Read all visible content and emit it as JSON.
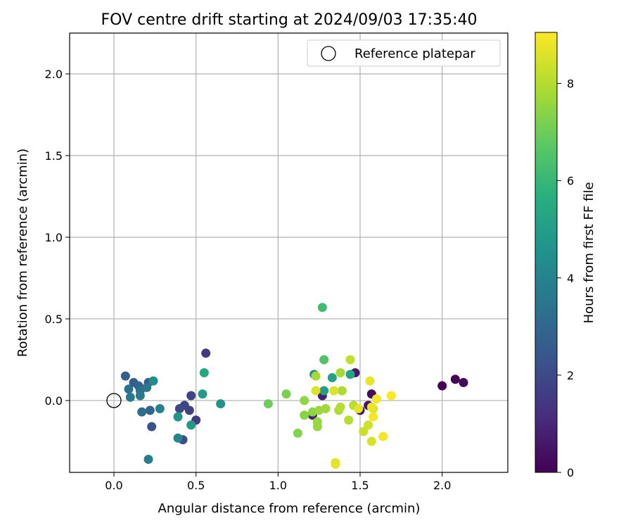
{
  "chart_data": {
    "type": "scatter",
    "title": "FOV centre drift starting at 2024/09/03 17:35:40",
    "xlabel": "Angular distance from reference (arcmin)",
    "ylabel": "Rotation from reference (arcmin)",
    "xlim": [
      -0.27,
      2.4
    ],
    "ylim": [
      -0.44,
      2.25
    ],
    "x_ticks": [
      0.0,
      0.5,
      1.0,
      1.5,
      2.0
    ],
    "x_tick_labels": [
      "0.0",
      "0.5",
      "1.0",
      "1.5",
      "2.0"
    ],
    "y_ticks": [
      0.0,
      0.5,
      1.0,
      1.5,
      2.0
    ],
    "y_tick_labels": [
      "0.0",
      "0.5",
      "1.0",
      "1.5",
      "2.0"
    ],
    "grid": true,
    "legend": {
      "placement": "top-right",
      "entries": [
        {
          "label": "Reference platepar",
          "marker": "open-circle",
          "color": "#000000"
        }
      ]
    },
    "reference_point": {
      "x": 0.0,
      "y": 0.0
    },
    "colorbar": {
      "label": "Hours from first FF file",
      "colormap": "viridis",
      "range": [
        0,
        9.05
      ],
      "ticks": [
        0,
        2,
        4,
        6,
        8
      ],
      "tick_labels": [
        "0",
        "2",
        "4",
        "6",
        "8"
      ]
    },
    "points": [
      {
        "x": 2.0,
        "y": 0.09,
        "hours": 0.05
      },
      {
        "x": 2.08,
        "y": 0.13,
        "hours": 0.1
      },
      {
        "x": 2.13,
        "y": 0.11,
        "hours": 0.15
      },
      {
        "x": 1.57,
        "y": 0.04,
        "hours": 0.3
      },
      {
        "x": 1.55,
        "y": -0.03,
        "hours": 0.4
      },
      {
        "x": 1.5,
        "y": -0.06,
        "hours": 0.5
      },
      {
        "x": 1.47,
        "y": 0.17,
        "hours": 0.6
      },
      {
        "x": 1.27,
        "y": 0.03,
        "hours": 0.8
      },
      {
        "x": 1.21,
        "y": -0.09,
        "hours": 0.9
      },
      {
        "x": 0.56,
        "y": 0.29,
        "hours": 1.5
      },
      {
        "x": 0.5,
        "y": -0.12,
        "hours": 1.6
      },
      {
        "x": 0.46,
        "y": -0.06,
        "hours": 1.7
      },
      {
        "x": 0.47,
        "y": 0.03,
        "hours": 1.8
      },
      {
        "x": 0.43,
        "y": -0.03,
        "hours": 1.9
      },
      {
        "x": 0.4,
        "y": -0.05,
        "hours": 2.0
      },
      {
        "x": 0.42,
        "y": -0.24,
        "hours": 2.1
      },
      {
        "x": 0.23,
        "y": -0.16,
        "hours": 2.3
      },
      {
        "x": 0.21,
        "y": 0.11,
        "hours": 2.6
      },
      {
        "x": 0.12,
        "y": 0.11,
        "hours": 2.7
      },
      {
        "x": 0.07,
        "y": 0.15,
        "hours": 2.8
      },
      {
        "x": 0.15,
        "y": 0.09,
        "hours": 2.9
      },
      {
        "x": 0.22,
        "y": -0.06,
        "hours": 3.0
      },
      {
        "x": 0.17,
        "y": -0.07,
        "hours": 3.2
      },
      {
        "x": 0.09,
        "y": 0.07,
        "hours": 3.3
      },
      {
        "x": 0.16,
        "y": 0.06,
        "hours": 3.4
      },
      {
        "x": 0.2,
        "y": 0.08,
        "hours": 3.5
      },
      {
        "x": 0.1,
        "y": 0.02,
        "hours": 3.6
      },
      {
        "x": 0.16,
        "y": 0.03,
        "hours": 3.7
      },
      {
        "x": 0.21,
        "y": -0.36,
        "hours": 3.8
      },
      {
        "x": 0.28,
        "y": -0.05,
        "hours": 4.0
      },
      {
        "x": 0.39,
        "y": -0.23,
        "hours": 4.1
      },
      {
        "x": 1.22,
        "y": 0.16,
        "hours": 4.2
      },
      {
        "x": 0.24,
        "y": 0.12,
        "hours": 4.4
      },
      {
        "x": 0.65,
        "y": -0.02,
        "hours": 4.6
      },
      {
        "x": 0.39,
        "y": -0.1,
        "hours": 4.7
      },
      {
        "x": 0.47,
        "y": -0.15,
        "hours": 4.8
      },
      {
        "x": 0.54,
        "y": 0.04,
        "hours": 4.9
      },
      {
        "x": 1.28,
        "y": 0.06,
        "hours": 5.0
      },
      {
        "x": 1.33,
        "y": 0.14,
        "hours": 5.2
      },
      {
        "x": 1.44,
        "y": 0.16,
        "hours": 5.3
      },
      {
        "x": 0.55,
        "y": 0.17,
        "hours": 5.4
      },
      {
        "x": 1.27,
        "y": 0.57,
        "hours": 6.2
      },
      {
        "x": 1.28,
        "y": 0.25,
        "hours": 6.5
      },
      {
        "x": 0.94,
        "y": -0.02,
        "hours": 7.0
      },
      {
        "x": 1.05,
        "y": 0.04,
        "hours": 7.2
      },
      {
        "x": 1.12,
        "y": -0.2,
        "hours": 7.3
      },
      {
        "x": 1.16,
        "y": -0.09,
        "hours": 7.4
      },
      {
        "x": 1.16,
        "y": 0.0,
        "hours": 7.5
      },
      {
        "x": 1.21,
        "y": -0.07,
        "hours": 7.5
      },
      {
        "x": 1.24,
        "y": -0.16,
        "hours": 7.6
      },
      {
        "x": 1.24,
        "y": -0.13,
        "hours": 7.6
      },
      {
        "x": 1.25,
        "y": -0.06,
        "hours": 7.7
      },
      {
        "x": 1.29,
        "y": -0.05,
        "hours": 7.7
      },
      {
        "x": 1.23,
        "y": 0.15,
        "hours": 7.8
      },
      {
        "x": 1.38,
        "y": 0.17,
        "hours": 7.8
      },
      {
        "x": 1.39,
        "y": 0.06,
        "hours": 7.9
      },
      {
        "x": 1.37,
        "y": -0.06,
        "hours": 7.9
      },
      {
        "x": 1.38,
        "y": -0.04,
        "hours": 8.0
      },
      {
        "x": 1.43,
        "y": -0.12,
        "hours": 8.0
      },
      {
        "x": 1.46,
        "y": -0.03,
        "hours": 8.1
      },
      {
        "x": 1.44,
        "y": 0.25,
        "hours": 8.2
      },
      {
        "x": 1.52,
        "y": -0.19,
        "hours": 8.3
      },
      {
        "x": 1.55,
        "y": -0.15,
        "hours": 8.4
      },
      {
        "x": 1.57,
        "y": -0.25,
        "hours": 8.5
      },
      {
        "x": 1.58,
        "y": -0.05,
        "hours": 8.5
      },
      {
        "x": 1.23,
        "y": 0.06,
        "hours": 8.6
      },
      {
        "x": 1.34,
        "y": 0.06,
        "hours": 8.6
      },
      {
        "x": 1.35,
        "y": -0.38,
        "hours": 8.7
      },
      {
        "x": 1.35,
        "y": -0.39,
        "hours": 8.7
      },
      {
        "x": 1.49,
        "y": -0.05,
        "hours": 8.7
      },
      {
        "x": 1.56,
        "y": 0.12,
        "hours": 8.8
      },
      {
        "x": 1.57,
        "y": -0.04,
        "hours": 8.8
      },
      {
        "x": 1.6,
        "y": 0.01,
        "hours": 8.9
      },
      {
        "x": 1.58,
        "y": -0.1,
        "hours": 8.9
      },
      {
        "x": 1.64,
        "y": -0.22,
        "hours": 8.9
      },
      {
        "x": 1.69,
        "y": 0.03,
        "hours": 9.0
      }
    ]
  }
}
